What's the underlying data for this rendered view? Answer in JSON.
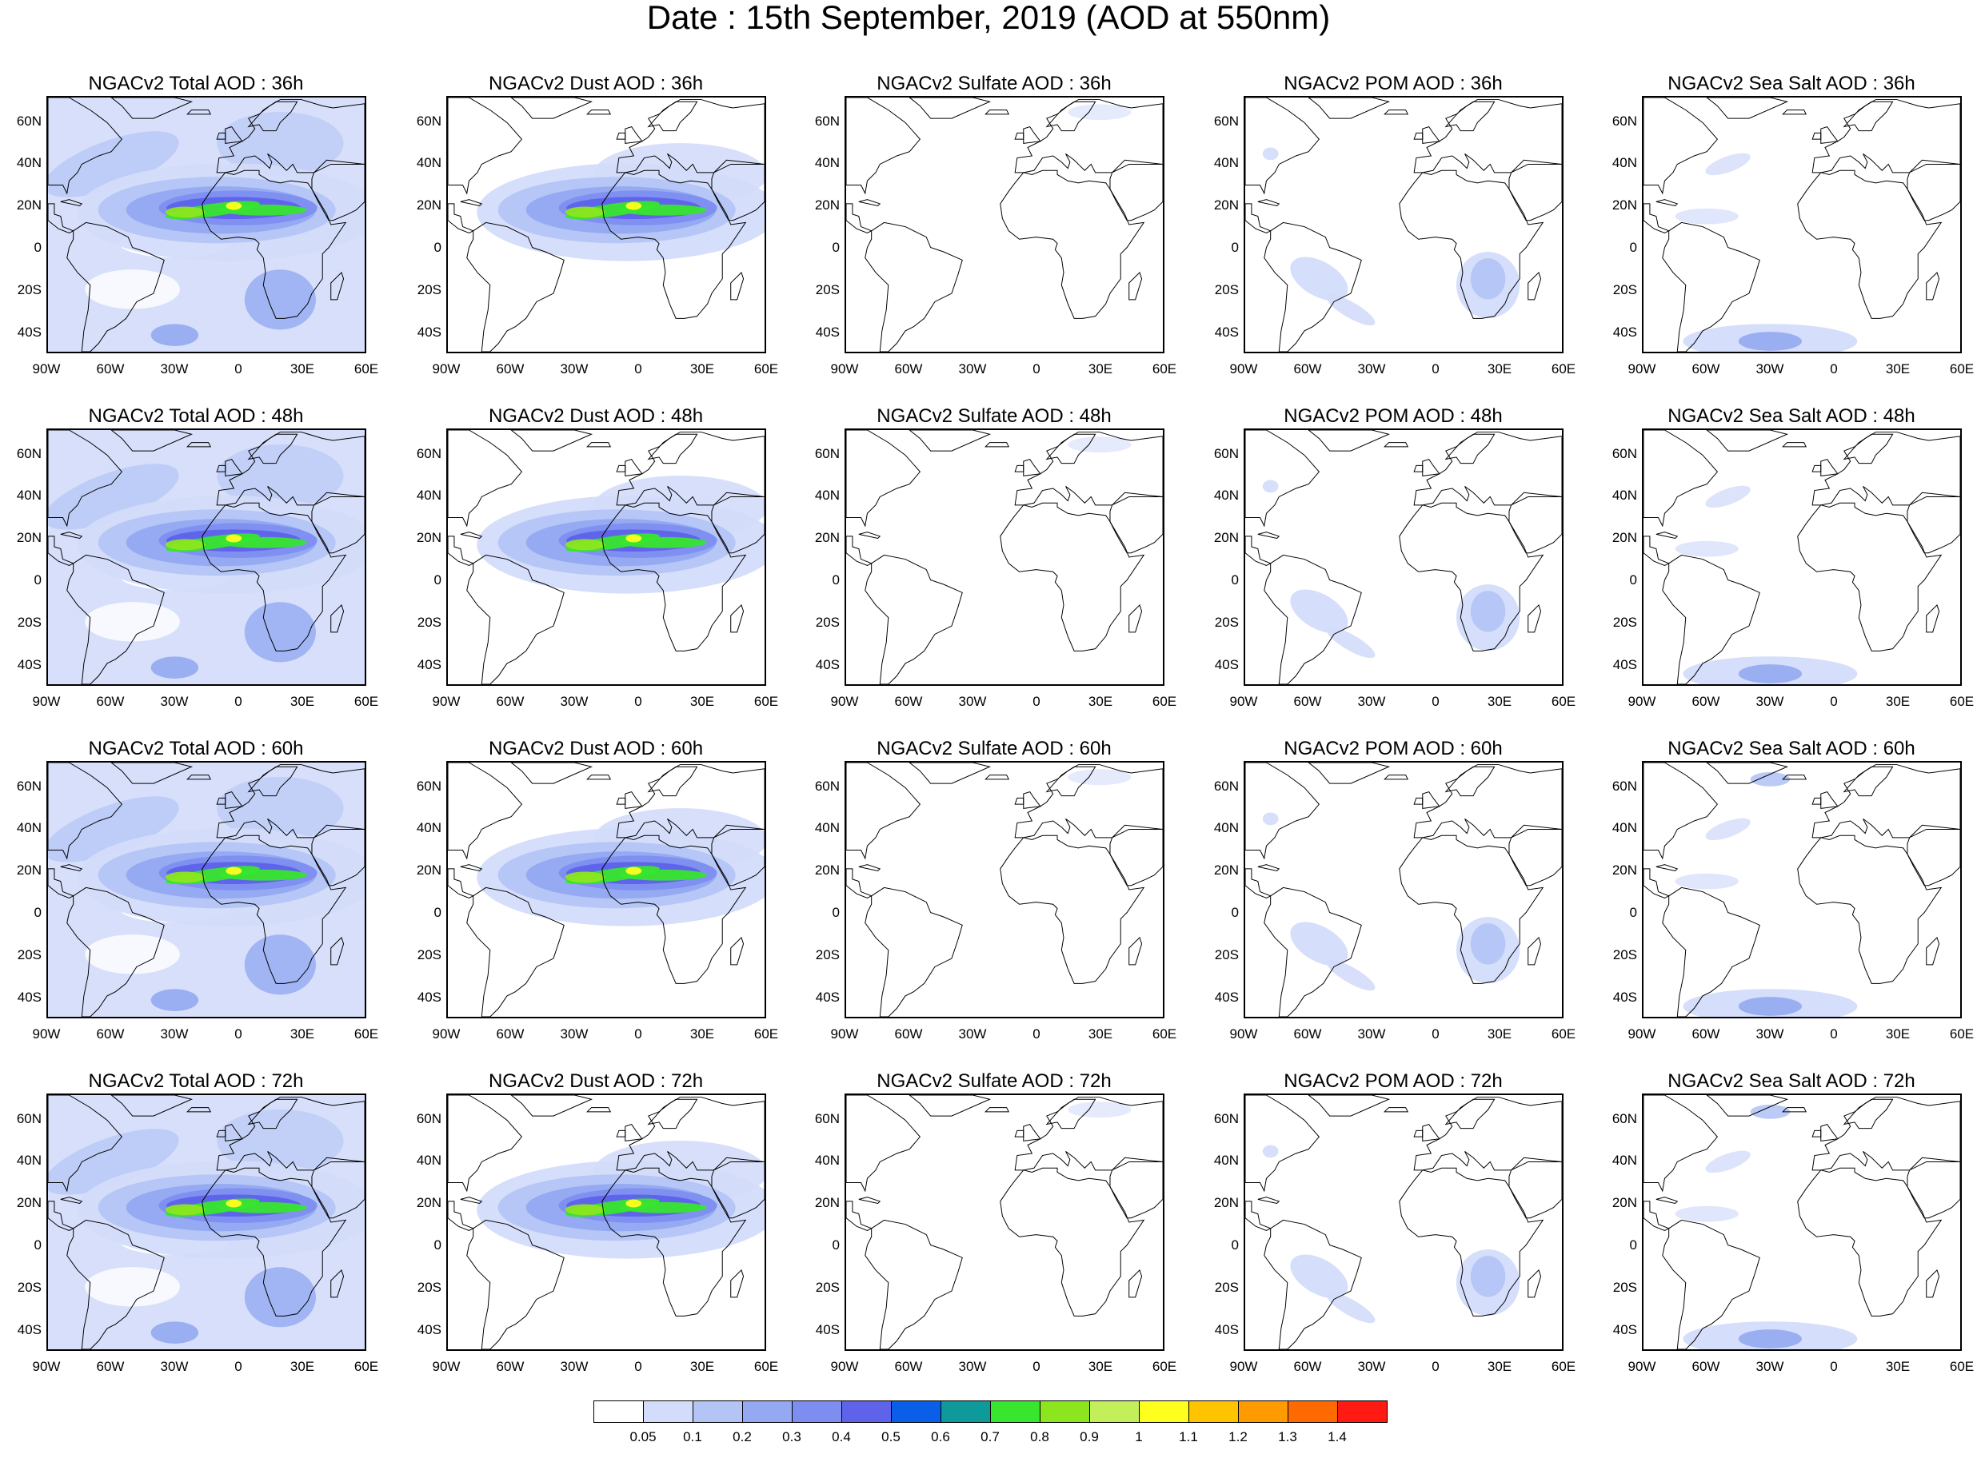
{
  "title": "Date : 15th September, 2019 (AOD at 550nm)",
  "colors": {
    "land": "#ffffff",
    "coast": "#000000",
    "levels": [
      "#ffffff",
      "#d3dcfa",
      "#b4c4f5",
      "#94a9f1",
      "#7d8ef0",
      "#5e63ea",
      "#0a5fe8",
      "#0e9a9a",
      "#37e62d",
      "#8be61e",
      "#c3f05a",
      "#ffff1e",
      "#ffc300",
      "#ff9a00",
      "#ff6a00",
      "#ff1a14"
    ]
  },
  "rows": [
    {
      "hour": "36h"
    },
    {
      "hour": "48h"
    },
    {
      "hour": "60h"
    },
    {
      "hour": "72h"
    }
  ],
  "panels": [
    [
      "NGACv2 Total AOD : 36h",
      "NGACv2 Dust AOD : 36h",
      "NGACv2 Sulfate AOD : 36h",
      "NGACv2 POM AOD : 36h",
      "NGACv2 Sea Salt AOD : 36h"
    ],
    [
      "NGACv2 Total AOD : 48h",
      "NGACv2 Dust AOD : 48h",
      "NGACv2 Sulfate AOD : 48h",
      "NGACv2 POM AOD : 48h",
      "NGACv2 Sea Salt AOD : 48h"
    ],
    [
      "NGACv2 Total AOD : 60h",
      "NGACv2 Dust AOD : 60h",
      "NGACv2 Sulfate AOD : 60h",
      "NGACv2 POM AOD : 60h",
      "NGACv2 Sea Salt AOD : 60h"
    ],
    [
      "NGACv2 Total AOD : 72h",
      "NGACv2 Dust AOD : 72h",
      "NGACv2 Sulfate AOD : 72h",
      "NGACv2 POM AOD : 72h",
      "NGACv2 Sea Salt  AOD : 72h"
    ]
  ],
  "lat_ticks": [
    "60N",
    "40N",
    "20N",
    "0",
    "20S",
    "40S"
  ],
  "lon_ticks": [
    "90W",
    "60W",
    "30W",
    "0",
    "30E",
    "60E"
  ],
  "colorbar_labels": [
    "0.05",
    "0.1",
    "0.2",
    "0.3",
    "0.4",
    "0.5",
    "0.6",
    "0.7",
    "0.8",
    "0.9",
    "1",
    "1.1",
    "1.2",
    "1.3",
    "1.4"
  ],
  "map_extent": {
    "lon": [
      -90,
      60
    ],
    "lat": [
      -50,
      72
    ]
  }
}
